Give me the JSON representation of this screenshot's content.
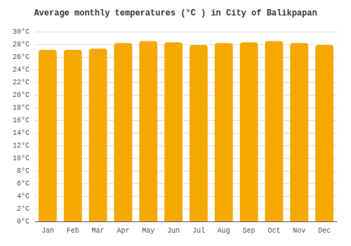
{
  "chart_data": {
    "type": "bar",
    "title": "Average monthly temperatures (°C ) in City of Balikpapan",
    "categories": [
      "Jan",
      "Feb",
      "Mar",
      "Apr",
      "May",
      "Jun",
      "Jul",
      "Aug",
      "Sep",
      "Oct",
      "Nov",
      "Dec"
    ],
    "values": [
      27.1,
      27.1,
      27.3,
      28.2,
      28.5,
      28.3,
      27.9,
      28.2,
      28.3,
      28.5,
      28.2,
      27.9
    ],
    "color": "#F5A800",
    "ylim": [
      0,
      30
    ],
    "yticks": [
      {
        "value": 0,
        "label": "0°C"
      },
      {
        "value": 2,
        "label": "2°C"
      },
      {
        "value": 4,
        "label": "4°C"
      },
      {
        "value": 6,
        "label": "6°C"
      },
      {
        "value": 8,
        "label": "8°C"
      },
      {
        "value": 10,
        "label": "10°C"
      },
      {
        "value": 12,
        "label": "12°C"
      },
      {
        "value": 14,
        "label": "14°C"
      },
      {
        "value": 16,
        "label": "16°C"
      },
      {
        "value": 18,
        "label": "18°C"
      },
      {
        "value": 20,
        "label": "20°C"
      },
      {
        "value": 22,
        "label": "22°C"
      },
      {
        "value": 24,
        "label": "24°C"
      },
      {
        "value": 26,
        "label": "26°C"
      },
      {
        "value": 28,
        "label": "28°C"
      },
      {
        "value": 30,
        "label": "30°C"
      }
    ],
    "grid": true
  }
}
